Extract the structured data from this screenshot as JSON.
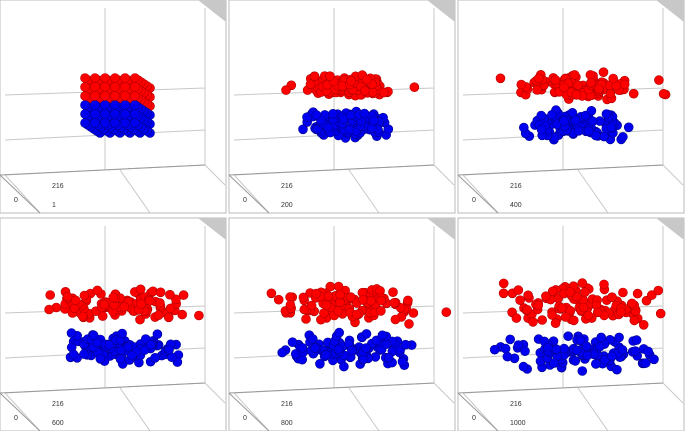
{
  "panels": [
    {
      "count": "216",
      "origin": "0",
      "step": "1"
    },
    {
      "count": "216",
      "origin": "0",
      "step": "200"
    },
    {
      "count": "216",
      "origin": "0",
      "step": "400"
    },
    {
      "count": "216",
      "origin": "0",
      "step": "600"
    },
    {
      "count": "216",
      "origin": "0",
      "step": "800"
    },
    {
      "count": "216",
      "origin": "0",
      "step": "1000"
    }
  ]
}
